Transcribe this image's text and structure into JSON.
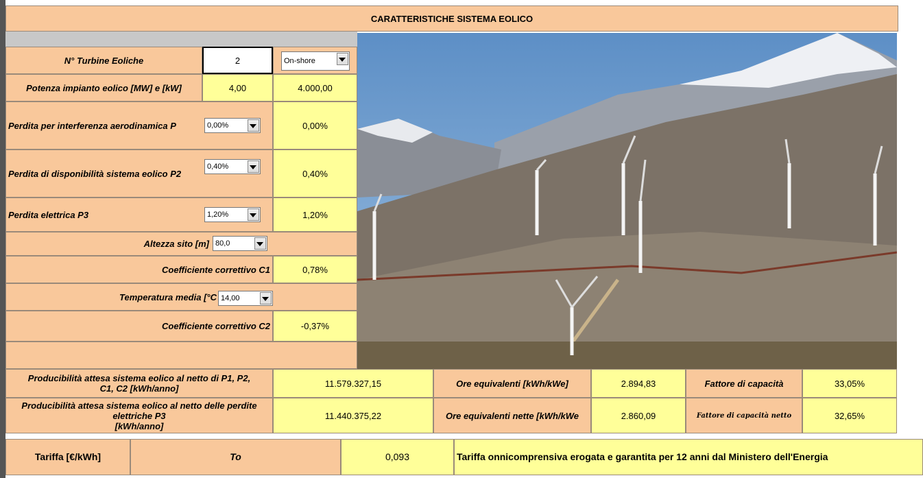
{
  "header": {
    "title": "CARATTERISTICHE SISTEMA EOLICO"
  },
  "inputs": {
    "turbines": {
      "label": "N° Turbine Eoliche",
      "value": "2",
      "site_type": "On-shore"
    },
    "power": {
      "label": "Potenza impianto eolico [MW] e [kW]",
      "mw": "4,00",
      "kw": "4.000,00"
    },
    "loss_p1": {
      "label": "Perdita per interferenza aerodinamica P",
      "select": "0,00%",
      "value": "0,00%"
    },
    "loss_p2": {
      "label": "Perdita di disponibilità sistema eolico P2",
      "select": "0,40%",
      "value": "0,40%"
    },
    "loss_p3": {
      "label": "Perdita elettrica P3",
      "select": "1,20%",
      "value": "1,20%"
    },
    "altitude": {
      "label": "Altezza sito [m]",
      "select": "80,0"
    },
    "c1": {
      "label": "Coefficiente correttivo C1",
      "value": "0,78%"
    },
    "temperature": {
      "label": "Temperatura media [°C",
      "select": "14,00"
    },
    "c2": {
      "label": "Coefficiente correttivo C2",
      "value": "-0,37%"
    }
  },
  "results": {
    "rows": [
      {
        "label": "Producibilità attesa sistema eolico al netto di P1, P2, C1, C2 [kWh/anno]",
        "value": "11.579.327,15",
        "hours_label": "Ore equivalenti [kWh/kWe]",
        "hours": "2.894,83",
        "cf_label": "Fattore di capacità",
        "cf": "33,05%"
      },
      {
        "label": "Producibilità attesa sistema eolico al netto delle perdite elettriche P3",
        "unit": "[kWh/anno]",
        "value": "11.440.375,22",
        "hours_label": "Ore equivalenti nette [kWh/kWe",
        "hours": "2.860,09",
        "cf_label": "Fattore di capacità netto",
        "cf": "32,65%"
      }
    ]
  },
  "tariff": {
    "label": "Tariffa [€/kWh]",
    "symbol": "To",
    "value": "0,093",
    "note": "Tariffa onnicomprensiva erogata e garantita per 12 anni dal Ministero dell'Energia"
  }
}
